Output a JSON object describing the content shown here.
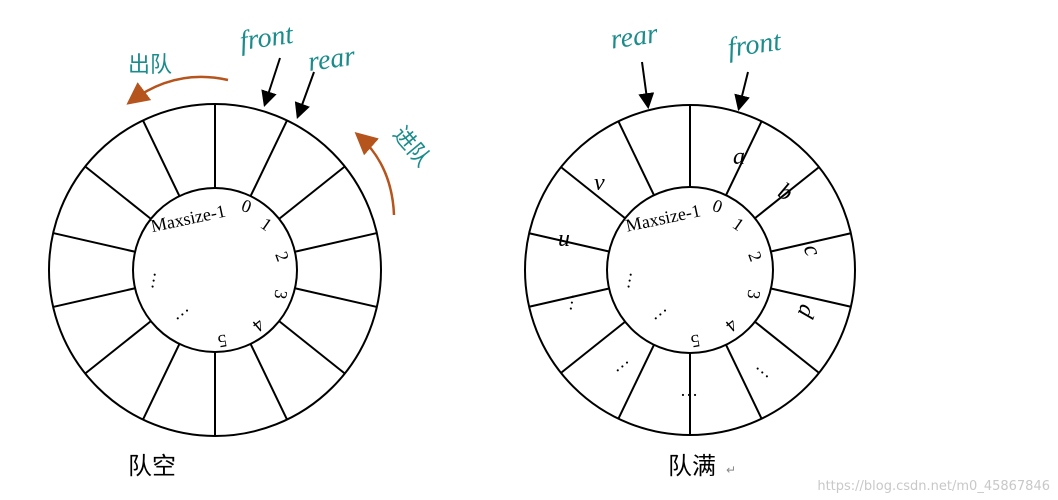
{
  "left": {
    "ops": {
      "dequeue": "出队",
      "enqueue": "进队"
    },
    "pointers": {
      "front": "front",
      "rear": "rear"
    },
    "indices": [
      "Maxsize-1",
      "0",
      "1",
      "2",
      "3",
      "4",
      "5"
    ],
    "ellipsis": [
      "…",
      "…"
    ],
    "caption": "队空"
  },
  "right": {
    "pointers": {
      "rear": "rear",
      "front": "front"
    },
    "indices": [
      "Maxsize-1",
      "0",
      "1",
      "2",
      "3",
      "4",
      "5"
    ],
    "cells": [
      "a",
      "b",
      "c",
      "d",
      "u",
      "v"
    ],
    "ellipsis": [
      "…",
      "…",
      "…",
      "…",
      "…",
      "…"
    ],
    "caption": "队满",
    "caption_mark": "↵"
  },
  "watermark": "https://blog.csdn.net/m0_45867846",
  "colors": {
    "teal": "#1a8c8c",
    "arrow": "#b5541c",
    "line": "#000000"
  }
}
